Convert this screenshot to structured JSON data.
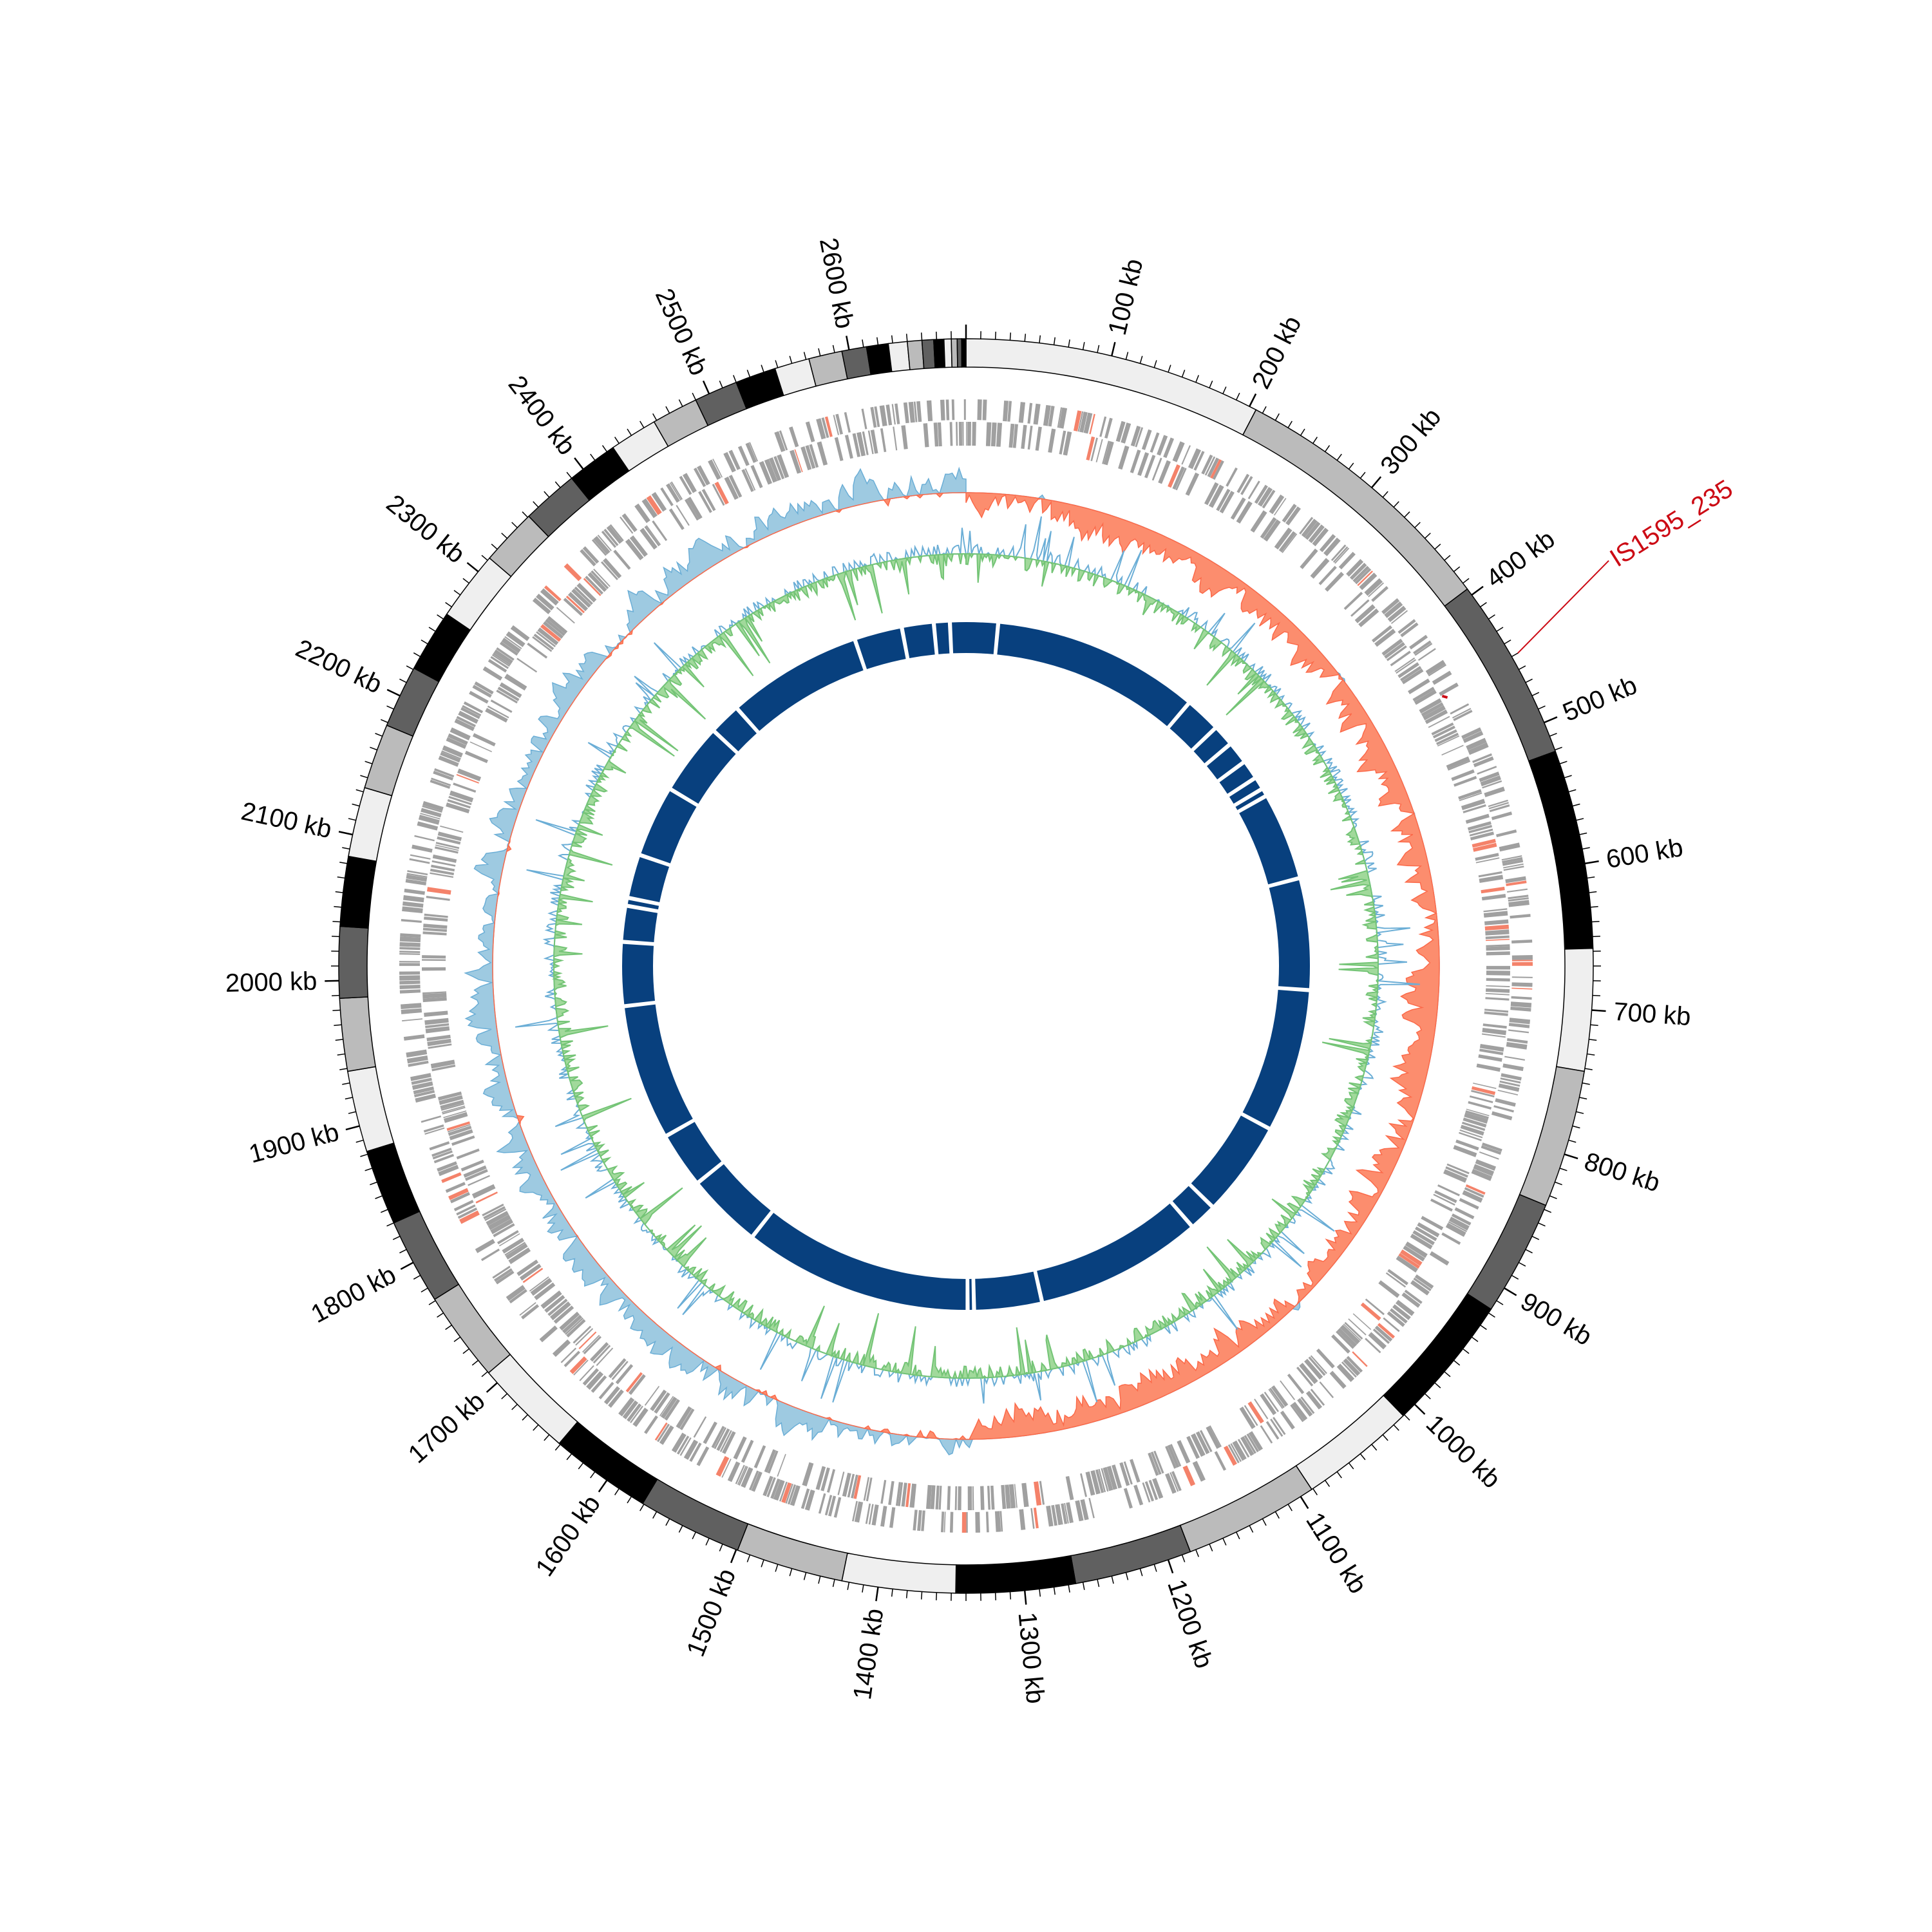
{
  "chart_data": {
    "type": "circos",
    "title": "",
    "genome_length_kb": 2680,
    "tick_labels": [
      "100 kb",
      "200 kb",
      "300 kb",
      "400 kb",
      "500 kb",
      "600 kb",
      "700 kb",
      "800 kb",
      "900 kb",
      "1000 kb",
      "1100 kb",
      "1200 kb",
      "1300 kb",
      "1400 kb",
      "1500 kb",
      "1600 kb",
      "1700 kb",
      "1800 kb",
      "1900 kb",
      "2000 kb",
      "2100 kb",
      "2200 kb",
      "2300 kb",
      "2400 kb",
      "2500 kb",
      "2600 kb"
    ],
    "tick_values_kb": [
      100,
      200,
      300,
      400,
      500,
      600,
      700,
      800,
      900,
      1000,
      1100,
      1200,
      1300,
      1400,
      1500,
      1600,
      1700,
      1800,
      1900,
      2000,
      2100,
      2200,
      2300,
      2400,
      2500,
      2600
    ],
    "minor_tick_step_kb": 10,
    "contig_boundaries_kb": [
      0,
      205,
      395,
      521,
      658,
      742,
      837,
      917,
      1011,
      1091,
      1184,
      1265,
      1347,
      1425,
      1499,
      1571,
      1641,
      1709,
      1771,
      1830,
      1882,
      1938,
      1988,
      2037,
      2085,
      2133,
      2178,
      2221,
      2264,
      2312,
      2351,
      2390,
      2425,
      2458,
      2490,
      2520,
      2548,
      2572,
      2595,
      2612,
      2627,
      2640,
      2650,
      2658,
      2665,
      2670,
      2674,
      2677,
      2680
    ],
    "contig_colors": [
      "#efefef",
      "#bbbbbb",
      "#606060",
      "#000000"
    ],
    "highlight": {
      "label": "IS1595_235",
      "position_kb": 450,
      "color": "#cc0a14"
    },
    "tracks": [
      {
        "name": "genes",
        "color": "#a0a0a0",
        "accent": "#f4826a"
      },
      {
        "name": "gc_skew",
        "positive_color": "#9ecae1",
        "negative_color": "#fc8d6e"
      },
      {
        "name": "gc_content",
        "positive_color": "#74c476",
        "negative_color": "#6baed6"
      },
      {
        "name": "contig_blocks",
        "color": "#08407e"
      }
    ],
    "inner_gaps_kb": [
      40,
      300,
      345,
      372,
      400,
      424,
      440,
      450,
      560,
      700,
      880,
      1000,
      1035,
      1245,
      1330,
      1338,
      1625,
      1720,
      1790,
      1960,
      2040,
      2085,
      2095,
      2150,
      2240,
      2330,
      2370,
      2540,
      2600,
      2640,
      2660
    ]
  }
}
